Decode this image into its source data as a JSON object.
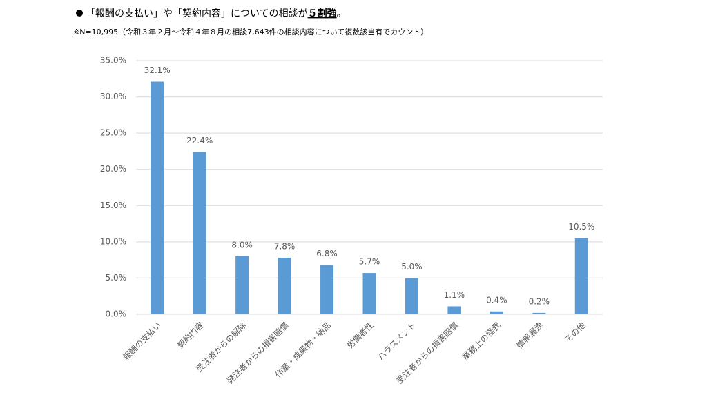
{
  "chart_data": {
    "type": "bar",
    "title": "「報酬の支払い」や「契約内容」についての相談が",
    "title_emphasis": "５割強",
    "title_suffix": "。",
    "subtitle": "※N=10,995（令和３年２月～令和４年８月の相談7,643件の相談内容について複数該当有でカウント）",
    "categories": [
      "報酬の支払い",
      "契約内容",
      "受注者からの解除",
      "発注者からの損害賠償",
      "作業・成果物・納品",
      "労働者性",
      "ハラスメント",
      "受注者からの損害賠償",
      "業務上の怪我",
      "情報漏洩",
      "その他"
    ],
    "values": [
      32.1,
      22.4,
      8.0,
      7.8,
      6.8,
      5.7,
      5.0,
      1.1,
      0.4,
      0.2,
      10.5
    ],
    "value_labels": [
      "32.1%",
      "22.4%",
      "8.0%",
      "7.8%",
      "6.8%",
      "5.7%",
      "5.0%",
      "1.1%",
      "0.4%",
      "0.2%",
      "10.5%"
    ],
    "color": "#5b9bd5",
    "ylim": [
      0,
      35
    ],
    "yticks": [
      {
        "value": 0,
        "label": "0.0%"
      },
      {
        "value": 5,
        "label": "5.0%"
      },
      {
        "value": 10,
        "label": "10.0%"
      },
      {
        "value": 15,
        "label": "15.0%"
      },
      {
        "value": 20,
        "label": "20.0%"
      },
      {
        "value": 25,
        "label": "25.0%"
      },
      {
        "value": 30,
        "label": "30.0%"
      },
      {
        "value": 35,
        "label": "35.0%"
      }
    ],
    "grid": true
  }
}
